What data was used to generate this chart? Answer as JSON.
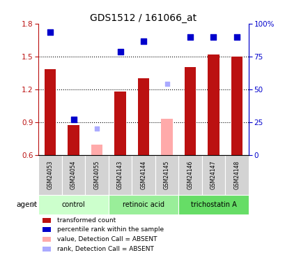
{
  "title": "GDS1512 / 161066_at",
  "samples": [
    "GSM24053",
    "GSM24054",
    "GSM24055",
    "GSM24143",
    "GSM24144",
    "GSM24145",
    "GSM24146",
    "GSM24147",
    "GSM24148"
  ],
  "groups": [
    {
      "name": "control",
      "indices": [
        0,
        1,
        2
      ],
      "color": "#ccffcc"
    },
    {
      "name": "retinoic acid",
      "indices": [
        3,
        4,
        5
      ],
      "color": "#99ee99"
    },
    {
      "name": "trichostatin A",
      "indices": [
        6,
        7,
        8
      ],
      "color": "#66dd66"
    }
  ],
  "bar_values": [
    1.38,
    0.87,
    null,
    1.18,
    1.3,
    null,
    1.4,
    1.52,
    1.5
  ],
  "absent_bar_values": [
    null,
    null,
    0.69,
    null,
    null,
    0.93,
    null,
    null,
    null
  ],
  "dot_values": [
    1.72,
    0.92,
    null,
    1.54,
    1.64,
    null,
    1.68,
    1.68,
    1.68
  ],
  "absent_dot_values": [
    null,
    null,
    0.84,
    null,
    null,
    1.25,
    null,
    null,
    null
  ],
  "bar_color": "#bb1111",
  "dot_color": "#0000cc",
  "absent_bar_color": "#ffaaaa",
  "absent_dot_color": "#aaaaff",
  "ylim": [
    0.6,
    1.8
  ],
  "y2lim": [
    0,
    100
  ],
  "yticks": [
    0.6,
    0.9,
    1.2,
    1.5,
    1.8
  ],
  "y2ticks": [
    0,
    25,
    50,
    75,
    100
  ],
  "y2ticklabels": [
    "0",
    "25",
    "50",
    "75",
    "100%"
  ],
  "grid_vals": [
    0.9,
    1.2,
    1.5
  ],
  "bar_width": 0.5,
  "legend": [
    {
      "label": "transformed count",
      "color": "#bb1111"
    },
    {
      "label": "percentile rank within the sample",
      "color": "#0000cc"
    },
    {
      "label": "value, Detection Call = ABSENT",
      "color": "#ffaaaa"
    },
    {
      "label": "rank, Detection Call = ABSENT",
      "color": "#aaaaff"
    }
  ]
}
